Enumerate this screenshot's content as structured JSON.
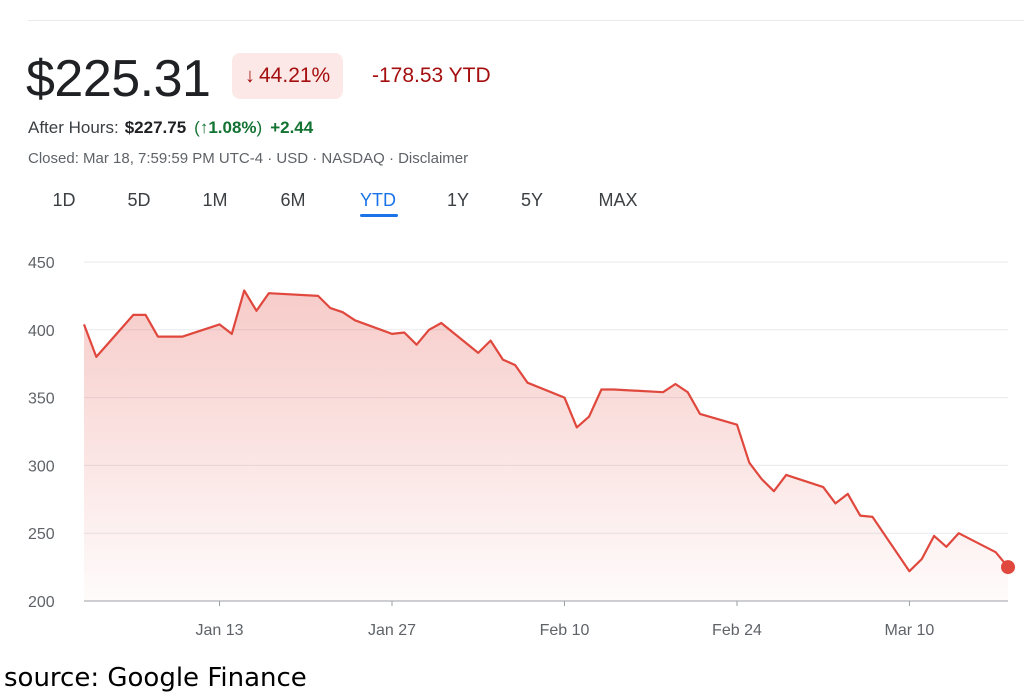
{
  "header": {
    "price": "$225.31",
    "change_arrow": "↓",
    "change_percent": "44.21%",
    "change_ytd": "-178.53 YTD",
    "after_hours_label": "After Hours:",
    "after_hours_price": "$227.75",
    "after_hours_open": "(",
    "after_hours_arrow": "↑",
    "after_hours_percent": "1.08%",
    "after_hours_close": ")",
    "after_hours_change": "+2.44",
    "meta": "Closed: Mar 18, 7:59:59 PM UTC-4 · USD · NASDAQ · Disclaimer"
  },
  "tabs": [
    {
      "label": "1D"
    },
    {
      "label": "5D"
    },
    {
      "label": "1M"
    },
    {
      "label": "6M"
    },
    {
      "label": "YTD"
    },
    {
      "label": "1Y"
    },
    {
      "label": "5Y"
    },
    {
      "label": "MAX"
    }
  ],
  "active_tab": "YTD",
  "source": "source: Google Finance",
  "colors": {
    "line": "#e0483e",
    "fill": "#e0483e",
    "grid": "#e8eaed",
    "axis_text": "#5f6368",
    "down": "#a50e0e",
    "up": "#137333",
    "active_tab": "#1a73e8"
  },
  "chart_data": {
    "type": "area",
    "title": "",
    "xlabel": "",
    "ylabel": "",
    "ylim": [
      200,
      450
    ],
    "yticks": [
      200,
      250,
      300,
      350,
      400,
      450
    ],
    "x_tick_labels": [
      "Jan 13",
      "Jan 27",
      "Feb 10",
      "Feb 24",
      "Mar 10"
    ],
    "x_tick_dates": [
      "2025-01-13",
      "2025-01-27",
      "2025-02-10",
      "2025-02-24",
      "2025-03-10"
    ],
    "grid": true,
    "series": [
      {
        "x": [
          "2025-01-02",
          "2025-01-03",
          "2025-01-06",
          "2025-01-07",
          "2025-01-08",
          "2025-01-10",
          "2025-01-13",
          "2025-01-14",
          "2025-01-15",
          "2025-01-16",
          "2025-01-17",
          "2025-01-21",
          "2025-01-22",
          "2025-01-23",
          "2025-01-24",
          "2025-01-27",
          "2025-01-28",
          "2025-01-29",
          "2025-01-30",
          "2025-01-31",
          "2025-02-03",
          "2025-02-04",
          "2025-02-05",
          "2025-02-06",
          "2025-02-07",
          "2025-02-10",
          "2025-02-11",
          "2025-02-12",
          "2025-02-13",
          "2025-02-14",
          "2025-02-18",
          "2025-02-19",
          "2025-02-20",
          "2025-02-21",
          "2025-02-24",
          "2025-02-25",
          "2025-02-26",
          "2025-02-27",
          "2025-02-28",
          "2025-03-03",
          "2025-03-04",
          "2025-03-05",
          "2025-03-06",
          "2025-03-07",
          "2025-03-10",
          "2025-03-11",
          "2025-03-12",
          "2025-03-13",
          "2025-03-14",
          "2025-03-17",
          "2025-03-18"
        ],
        "y": [
          404,
          380,
          411,
          411,
          395,
          395,
          404,
          397,
          429,
          414,
          427,
          425,
          416,
          413,
          407,
          397,
          398,
          389,
          400,
          405,
          383,
          392,
          378,
          374,
          361,
          350,
          328,
          336,
          356,
          356,
          354,
          360,
          354,
          338,
          330,
          302,
          290,
          281,
          293,
          284,
          272,
          279,
          263,
          262,
          222,
          231,
          248,
          240,
          250,
          236,
          225
        ]
      }
    ]
  }
}
